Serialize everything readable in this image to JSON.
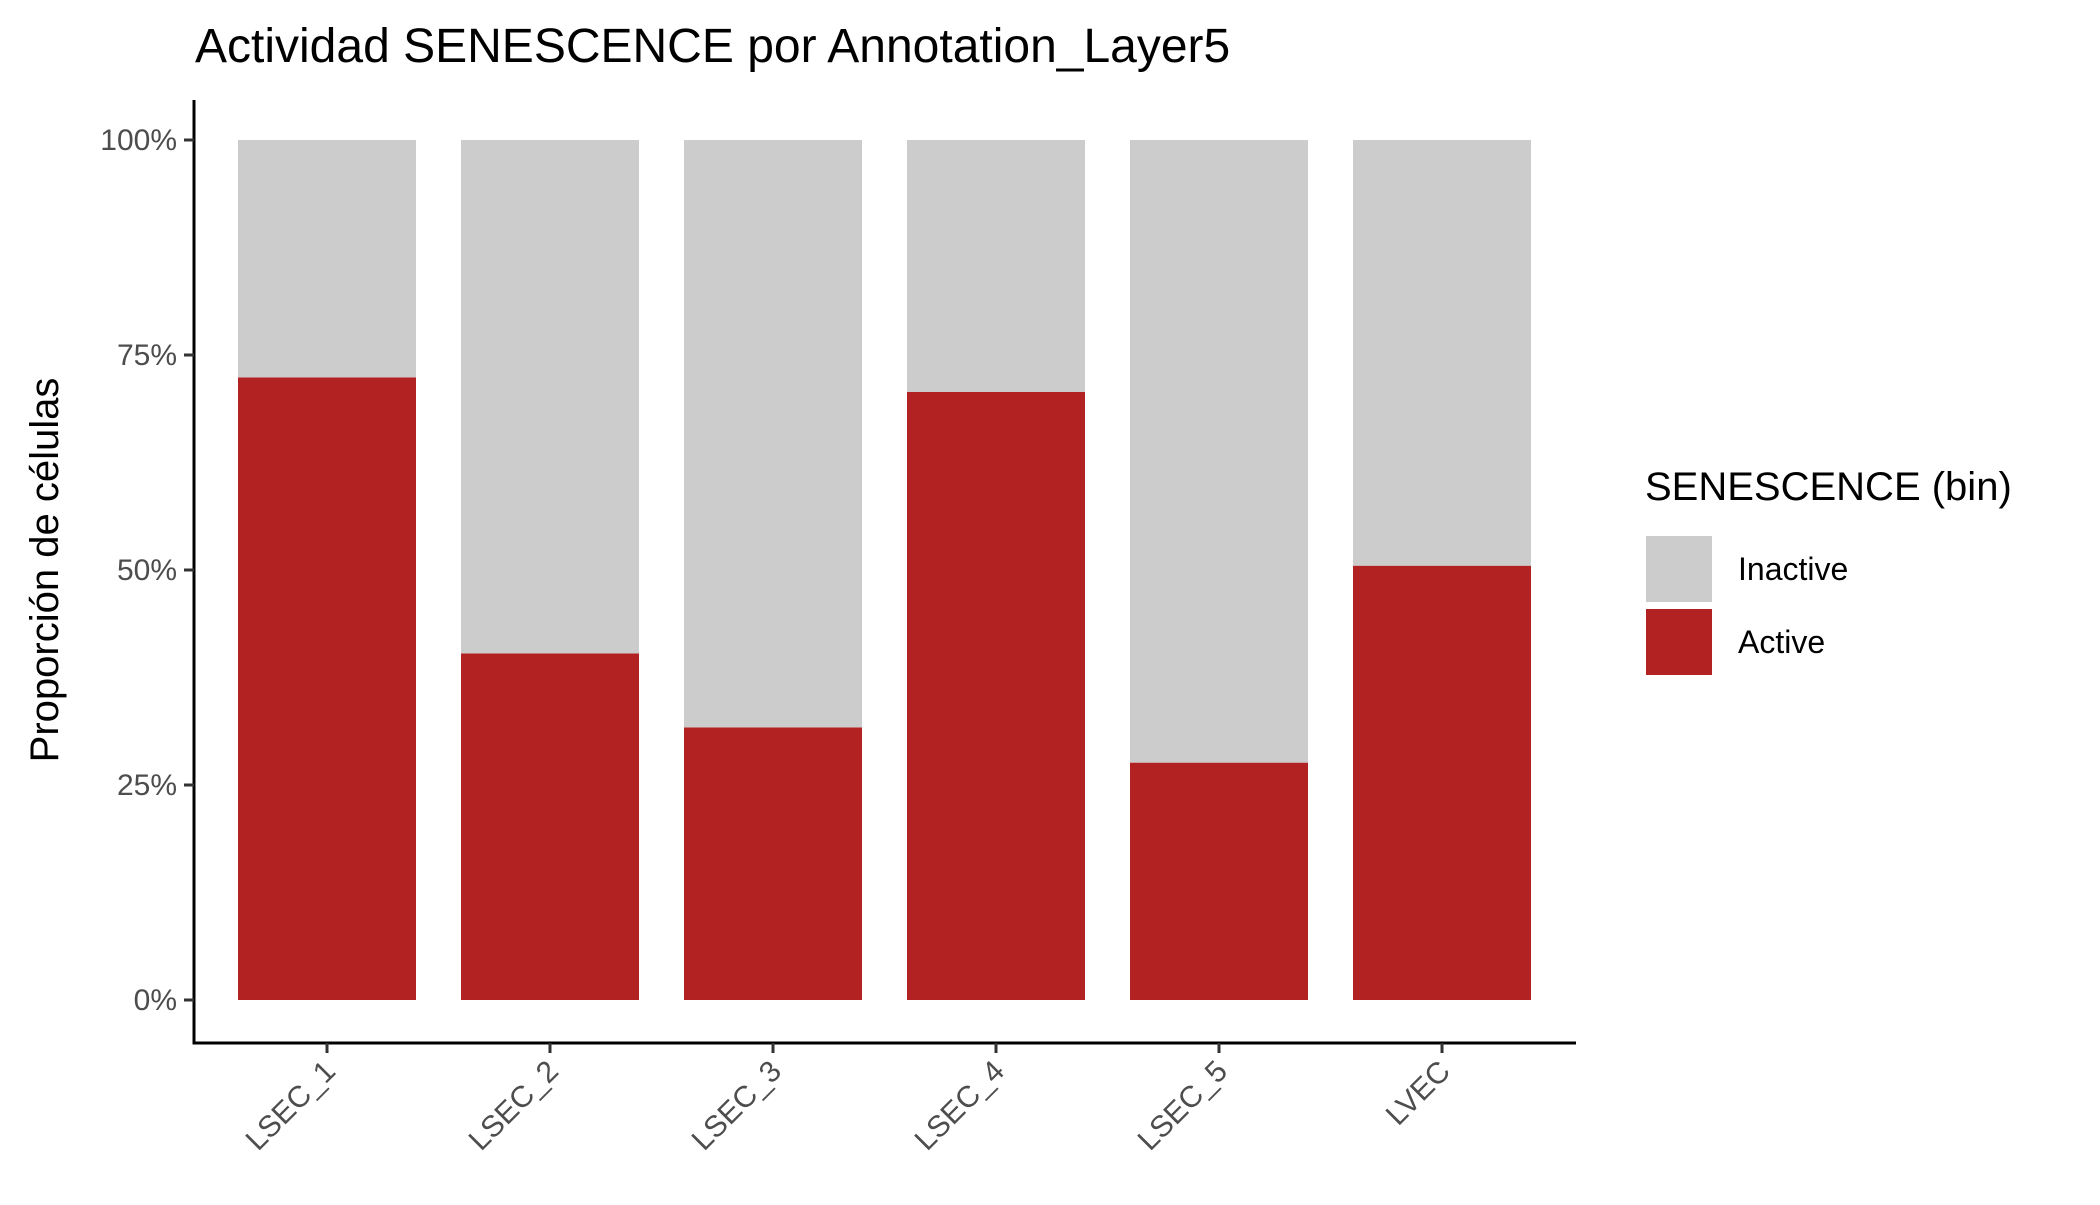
{
  "chart_data": {
    "type": "bar",
    "stacked": true,
    "title": "Actividad SENESCENCE por Annotation_Layer5",
    "xlabel": "",
    "ylabel": "Proporción de células",
    "categories": [
      "LSEC_1",
      "LSEC_2",
      "LSEC_3",
      "LSEC_4",
      "LSEC_5",
      "LVEC"
    ],
    "y_ticks": [
      "0%",
      "25%",
      "50%",
      "75%",
      "100%"
    ],
    "ylim": [
      0,
      1
    ],
    "grid": false,
    "legend": {
      "title": "SENESCENCE (bin)",
      "placement": "right"
    },
    "series": [
      {
        "name": "Active",
        "color": "#B22222",
        "values": [
          0.724,
          0.403,
          0.317,
          0.707,
          0.276,
          0.505
        ]
      },
      {
        "name": "Inactive",
        "color": "#CCCCCC",
        "values": [
          0.276,
          0.597,
          0.683,
          0.293,
          0.724,
          0.495
        ]
      }
    ],
    "legend_order": [
      "Inactive",
      "Active"
    ]
  }
}
